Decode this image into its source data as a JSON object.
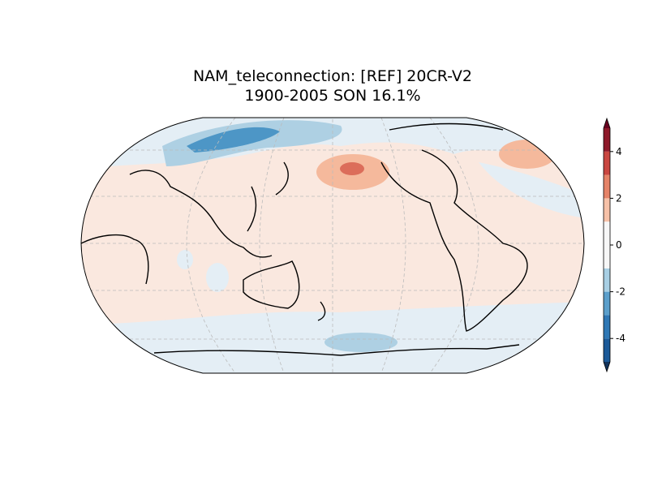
{
  "chart_data": {
    "type": "contour-map",
    "title": "NAM_teleconnection: [REF] 20CR-V2",
    "subtitle": "1900-2005 SON 16.1%",
    "colorbar": {
      "lim": [
        -5,
        5
      ],
      "ticks": [
        -4,
        -2,
        0,
        2,
        4
      ],
      "levels": [
        -5,
        -4,
        -3,
        -2,
        -1,
        1,
        2,
        3,
        4,
        5
      ],
      "colors": [
        "#1c5a99",
        "#2f78b5",
        "#5b9fcb",
        "#a8cfe4",
        "#f7f7f7",
        "#f6c1a8",
        "#e58368",
        "#c94741",
        "#8e1a2a"
      ],
      "extend_low_color": "#12325a",
      "extend_high_color": "#67001f"
    }
  }
}
